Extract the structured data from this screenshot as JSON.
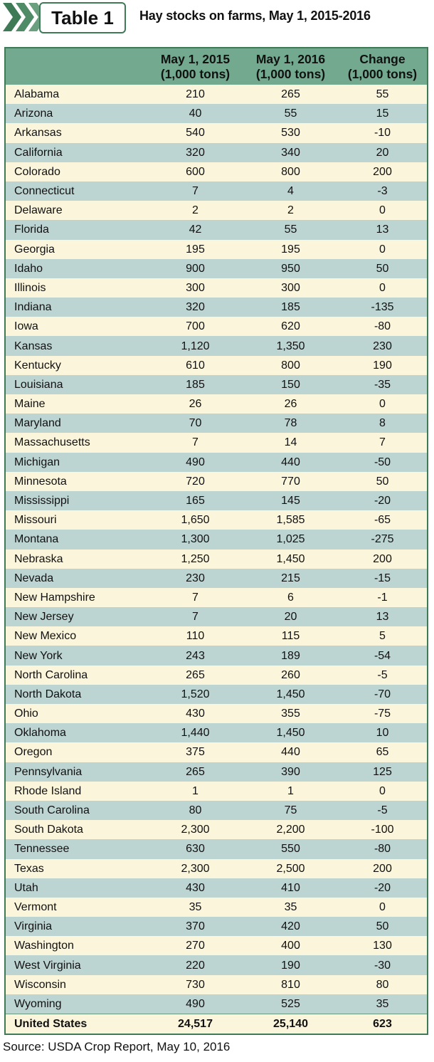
{
  "header": {
    "badge": "Table 1",
    "title": "Hay stocks on farms, May 1, 2015-2016",
    "chevron_color": "#3f7a57"
  },
  "table": {
    "columns": [
      {
        "line1": "",
        "line2": ""
      },
      {
        "line1": "May 1, 2015",
        "line2": "(1,000 tons)"
      },
      {
        "line1": "May 1, 2016",
        "line2": "(1,000 tons)"
      },
      {
        "line1": "Change",
        "line2": "(1,000 tons)"
      }
    ],
    "rows": [
      [
        "Alabama",
        "210",
        "265",
        "55"
      ],
      [
        "Arizona",
        "40",
        "55",
        "15"
      ],
      [
        "Arkansas",
        "540",
        "530",
        "-10"
      ],
      [
        "California",
        "320",
        "340",
        "20"
      ],
      [
        "Colorado",
        "600",
        "800",
        "200"
      ],
      [
        "Connecticut",
        "7",
        "4",
        "-3"
      ],
      [
        "Delaware",
        "2",
        "2",
        "0"
      ],
      [
        "Florida",
        "42",
        "55",
        "13"
      ],
      [
        "Georgia",
        "195",
        "195",
        "0"
      ],
      [
        "Idaho",
        "900",
        "950",
        "50"
      ],
      [
        "Illinois",
        "300",
        "300",
        "0"
      ],
      [
        "Indiana",
        "320",
        "185",
        "-135"
      ],
      [
        "Iowa",
        "700",
        "620",
        "-80"
      ],
      [
        "Kansas",
        "1,120",
        "1,350",
        "230"
      ],
      [
        "Kentucky",
        "610",
        "800",
        "190"
      ],
      [
        "Louisiana",
        "185",
        "150",
        "-35"
      ],
      [
        "Maine",
        "26",
        "26",
        "0"
      ],
      [
        "Maryland",
        "70",
        "78",
        "8"
      ],
      [
        "Massachusetts",
        "7",
        "14",
        "7"
      ],
      [
        "Michigan",
        "490",
        "440",
        "-50"
      ],
      [
        "Minnesota",
        "720",
        "770",
        "50"
      ],
      [
        "Mississippi",
        "165",
        "145",
        "-20"
      ],
      [
        "Missouri",
        "1,650",
        "1,585",
        "-65"
      ],
      [
        "Montana",
        "1,300",
        "1,025",
        "-275"
      ],
      [
        "Nebraska",
        "1,250",
        "1,450",
        "200"
      ],
      [
        "Nevada",
        "230",
        "215",
        "-15"
      ],
      [
        "New Hampshire",
        "7",
        "6",
        "-1"
      ],
      [
        "New Jersey",
        "7",
        "20",
        "13"
      ],
      [
        "New Mexico",
        "110",
        "115",
        "5"
      ],
      [
        "New York",
        "243",
        "189",
        "-54"
      ],
      [
        "North Carolina",
        "265",
        "260",
        "-5"
      ],
      [
        "North Dakota",
        "1,520",
        "1,450",
        "-70"
      ],
      [
        "Ohio",
        "430",
        "355",
        "-75"
      ],
      [
        "Oklahoma",
        "1,440",
        "1,450",
        "10"
      ],
      [
        "Oregon",
        "375",
        "440",
        "65"
      ],
      [
        "Pennsylvania",
        "265",
        "390",
        "125"
      ],
      [
        "Rhode Island",
        "1",
        "1",
        "0"
      ],
      [
        "South Carolina",
        "80",
        "75",
        "-5"
      ],
      [
        "South Dakota",
        "2,300",
        "2,200",
        "-100"
      ],
      [
        "Tennessee",
        "630",
        "550",
        "-80"
      ],
      [
        "Texas",
        "2,300",
        "2,500",
        "200"
      ],
      [
        "Utah",
        "430",
        "410",
        "-20"
      ],
      [
        "Vermont",
        "35",
        "35",
        "0"
      ],
      [
        "Virginia",
        "370",
        "420",
        "50"
      ],
      [
        "Washington",
        "270",
        "400",
        "130"
      ],
      [
        "West Virginia",
        "220",
        "190",
        "-30"
      ],
      [
        "Wisconsin",
        "730",
        "810",
        "80"
      ],
      [
        "Wyoming",
        "490",
        "525",
        "35"
      ]
    ],
    "total": [
      "United States",
      "24,517",
      "25,140",
      "623"
    ]
  },
  "source": "Source: USDA Crop Report, May 10, 2016",
  "chart_data": {
    "type": "table",
    "title": "Hay stocks on farms, May 1, 2015-2016",
    "columns": [
      "",
      "May 1, 2015 (1,000 tons)",
      "May 1, 2016 (1,000 tons)",
      "Change (1,000 tons)"
    ],
    "rows": [
      [
        "Alabama",
        210,
        265,
        55
      ],
      [
        "Arizona",
        40,
        55,
        15
      ],
      [
        "Arkansas",
        540,
        530,
        -10
      ],
      [
        "California",
        320,
        340,
        20
      ],
      [
        "Colorado",
        600,
        800,
        200
      ],
      [
        "Connecticut",
        7,
        4,
        -3
      ],
      [
        "Delaware",
        2,
        2,
        0
      ],
      [
        "Florida",
        42,
        55,
        13
      ],
      [
        "Georgia",
        195,
        195,
        0
      ],
      [
        "Idaho",
        900,
        950,
        50
      ],
      [
        "Illinois",
        300,
        300,
        0
      ],
      [
        "Indiana",
        320,
        185,
        -135
      ],
      [
        "Iowa",
        700,
        620,
        -80
      ],
      [
        "Kansas",
        1120,
        1350,
        230
      ],
      [
        "Kentucky",
        610,
        800,
        190
      ],
      [
        "Louisiana",
        185,
        150,
        -35
      ],
      [
        "Maine",
        26,
        26,
        0
      ],
      [
        "Maryland",
        70,
        78,
        8
      ],
      [
        "Massachusetts",
        7,
        14,
        7
      ],
      [
        "Michigan",
        490,
        440,
        -50
      ],
      [
        "Minnesota",
        720,
        770,
        50
      ],
      [
        "Mississippi",
        165,
        145,
        -20
      ],
      [
        "Missouri",
        1650,
        1585,
        -65
      ],
      [
        "Montana",
        1300,
        1025,
        -275
      ],
      [
        "Nebraska",
        1250,
        1450,
        200
      ],
      [
        "Nevada",
        230,
        215,
        -15
      ],
      [
        "New Hampshire",
        7,
        6,
        -1
      ],
      [
        "New Jersey",
        7,
        20,
        13
      ],
      [
        "New Mexico",
        110,
        115,
        5
      ],
      [
        "New York",
        243,
        189,
        -54
      ],
      [
        "North Carolina",
        265,
        260,
        -5
      ],
      [
        "North Dakota",
        1520,
        1450,
        -70
      ],
      [
        "Ohio",
        430,
        355,
        -75
      ],
      [
        "Oklahoma",
        1440,
        1450,
        10
      ],
      [
        "Oregon",
        375,
        440,
        65
      ],
      [
        "Pennsylvania",
        265,
        390,
        125
      ],
      [
        "Rhode Island",
        1,
        1,
        0
      ],
      [
        "South Carolina",
        80,
        75,
        -5
      ],
      [
        "South Dakota",
        2300,
        2200,
        -100
      ],
      [
        "Tennessee",
        630,
        550,
        -80
      ],
      [
        "Texas",
        2300,
        2500,
        200
      ],
      [
        "Utah",
        430,
        410,
        -20
      ],
      [
        "Vermont",
        35,
        35,
        0
      ],
      [
        "Virginia",
        370,
        420,
        50
      ],
      [
        "Washington",
        270,
        400,
        130
      ],
      [
        "West Virginia",
        220,
        190,
        -30
      ],
      [
        "Wisconsin",
        730,
        810,
        80
      ],
      [
        "Wyoming",
        490,
        525,
        35
      ],
      [
        "United States",
        24517,
        25140,
        623
      ]
    ]
  }
}
